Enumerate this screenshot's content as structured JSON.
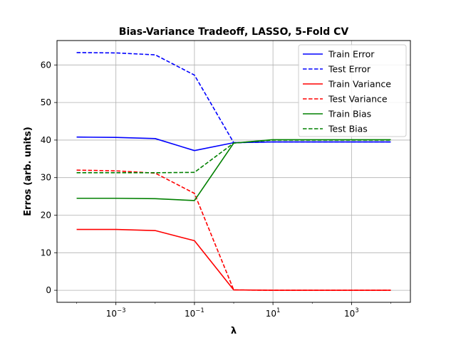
{
  "chart_data": {
    "type": "line",
    "title": "Bias-Variance Tradeoff, LASSO, 5-Fold CV",
    "xlabel": "λ",
    "ylabel": "Erros (arb. units)",
    "xscale": "log",
    "x": [
      0.0001,
      0.001,
      0.01,
      0.1,
      1,
      10,
      100,
      1000,
      10000
    ],
    "xlim": [
      3.16e-05,
      31600
    ],
    "ylim": [
      -3.2,
      66.5
    ],
    "xticks": [
      {
        "value": 0.001,
        "base": "10",
        "exp": "−3"
      },
      {
        "value": 0.1,
        "base": "10",
        "exp": "−1"
      },
      {
        "value": 10,
        "base": "10",
        "exp": "1"
      },
      {
        "value": 1000,
        "base": "10",
        "exp": "3"
      }
    ],
    "yticks": [
      0,
      10,
      20,
      30,
      40,
      50,
      60
    ],
    "grid": true,
    "legend_position": "top-right",
    "series": [
      {
        "name": "Train Error",
        "color": "#0000ff",
        "dash": "solid",
        "values": [
          40.8,
          40.7,
          40.4,
          37.2,
          39.3,
          39.5,
          39.5,
          39.5,
          39.5
        ]
      },
      {
        "name": "Test Error",
        "color": "#0000ff",
        "dash": "dashed",
        "values": [
          63.3,
          63.2,
          62.7,
          57.3,
          39.3,
          39.5,
          39.5,
          39.5,
          39.5
        ]
      },
      {
        "name": "Train Variance",
        "color": "#ff0000",
        "dash": "solid",
        "values": [
          16.2,
          16.2,
          15.9,
          13.2,
          0.1,
          0.0,
          0.0,
          0.0,
          0.0
        ]
      },
      {
        "name": "Test Variance",
        "color": "#ff0000",
        "dash": "dashed",
        "values": [
          32.0,
          31.8,
          31.2,
          25.8,
          0.1,
          0.0,
          0.0,
          0.0,
          0.0
        ]
      },
      {
        "name": "Train Bias",
        "color": "#008000",
        "dash": "solid",
        "values": [
          24.5,
          24.5,
          24.4,
          23.9,
          39.2,
          40.1,
          40.1,
          40.1,
          40.1
        ]
      },
      {
        "name": "Test Bias",
        "color": "#008000",
        "dash": "dashed",
        "values": [
          31.3,
          31.3,
          31.3,
          31.4,
          39.2,
          40.0,
          40.0,
          40.0,
          40.0
        ]
      }
    ]
  }
}
